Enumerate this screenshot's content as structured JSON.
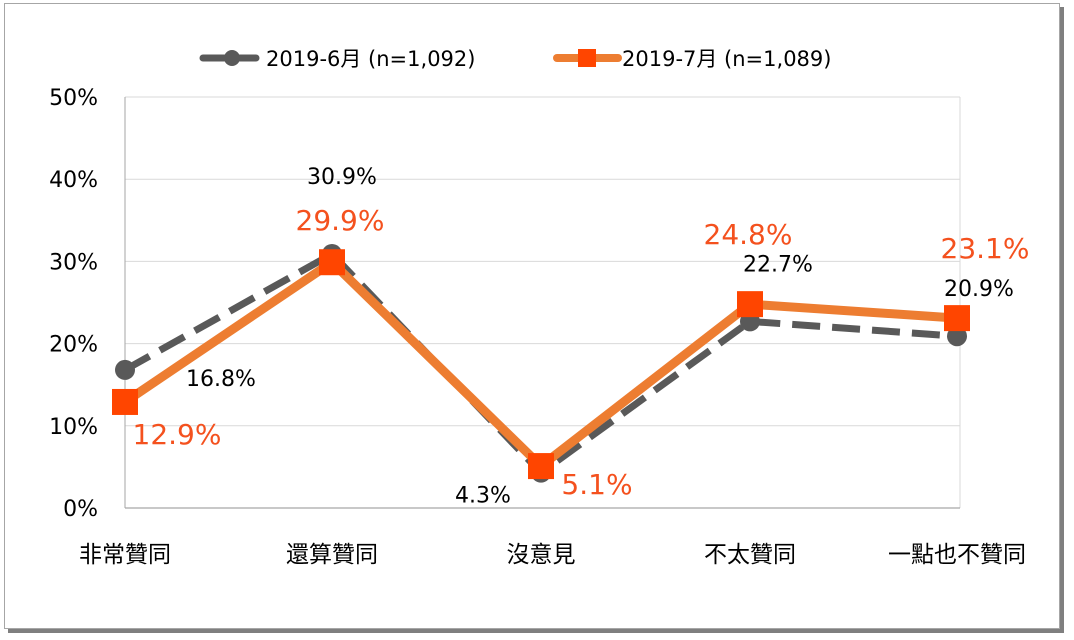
{
  "chart_data": {
    "type": "line",
    "categories": [
      "非常贊同",
      "還算贊同",
      "沒意見",
      "不太贊同",
      "一點也不贊同"
    ],
    "yticks": [
      "0%",
      "10%",
      "20%",
      "30%",
      "40%",
      "50%"
    ],
    "ylim": [
      0,
      50
    ],
    "grid": true,
    "legend_position": "top",
    "series": [
      {
        "name": "2019-6月 (n=1,092)",
        "values": [
          16.8,
          30.9,
          4.3,
          22.7,
          20.9
        ],
        "labels": [
          "16.8%",
          "30.9%",
          "4.3%",
          "22.7%",
          "20.9%"
        ],
        "color": "#595959",
        "line_style": "dashed",
        "marker": "circle"
      },
      {
        "name": "2019-7月 (n=1,089)",
        "values": [
          12.9,
          29.9,
          5.1,
          24.8,
          23.1
        ],
        "labels": [
          "12.9%",
          "29.9%",
          "5.1%",
          "24.8%",
          "23.1%"
        ],
        "color": "#ed7d31",
        "marker_color": "#ff4500",
        "label_color": "#f4511e",
        "line_style": "solid",
        "marker": "square"
      }
    ]
  }
}
